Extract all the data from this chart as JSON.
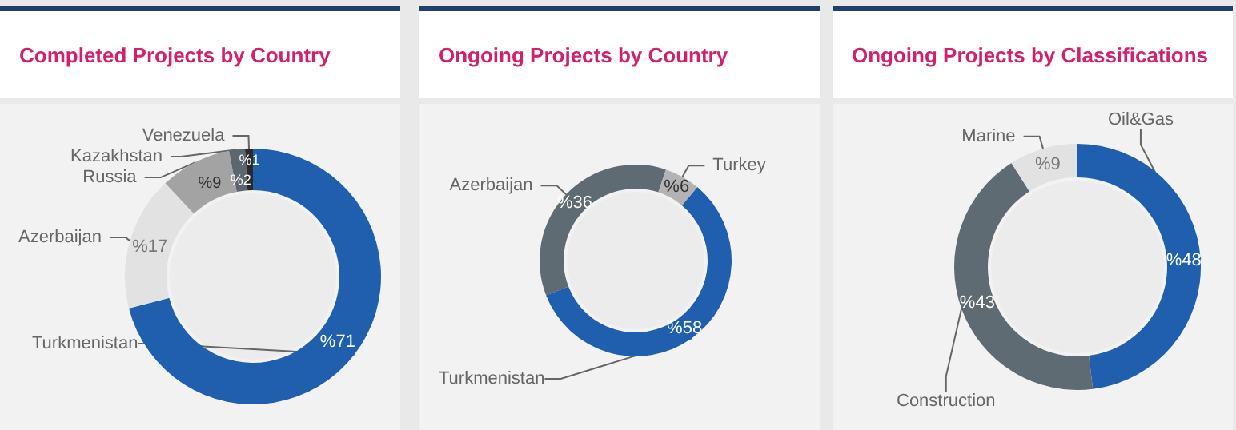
{
  "chart_data": [
    {
      "type": "donut",
      "title": "Completed Projects by Country",
      "categories": [
        "Turkmenistan",
        "Azerbaijan",
        "Russia",
        "Kazakhstan",
        "Venezuela"
      ],
      "values": [
        71,
        17,
        9,
        2,
        1
      ],
      "colors": [
        "#1f5fad",
        "#e2e2e2",
        "#a3a3a3",
        "#5c666e",
        "#2a2a2a"
      ],
      "value_labels": [
        "%71",
        "%17",
        "%9",
        "%2",
        "%1"
      ]
    },
    {
      "type": "donut",
      "title": "Ongoing Projects by Country",
      "categories": [
        "Turkmenistan",
        "Azerbaijan",
        "Turkey"
      ],
      "values": [
        58,
        36,
        6
      ],
      "colors": [
        "#1f5fad",
        "#5f6b73",
        "#b3b3b3"
      ],
      "value_labels": [
        "%58",
        "%36",
        "%6"
      ]
    },
    {
      "type": "donut",
      "title": "Ongoing Projects by Classifications",
      "categories": [
        "Oil&Gas",
        "Construction",
        "Marine"
      ],
      "values": [
        48,
        43,
        9
      ],
      "colors": [
        "#1f5fad",
        "#5f6b73",
        "#e2e2e2"
      ],
      "value_labels": [
        "%48",
        "%43",
        "%9"
      ]
    }
  ]
}
